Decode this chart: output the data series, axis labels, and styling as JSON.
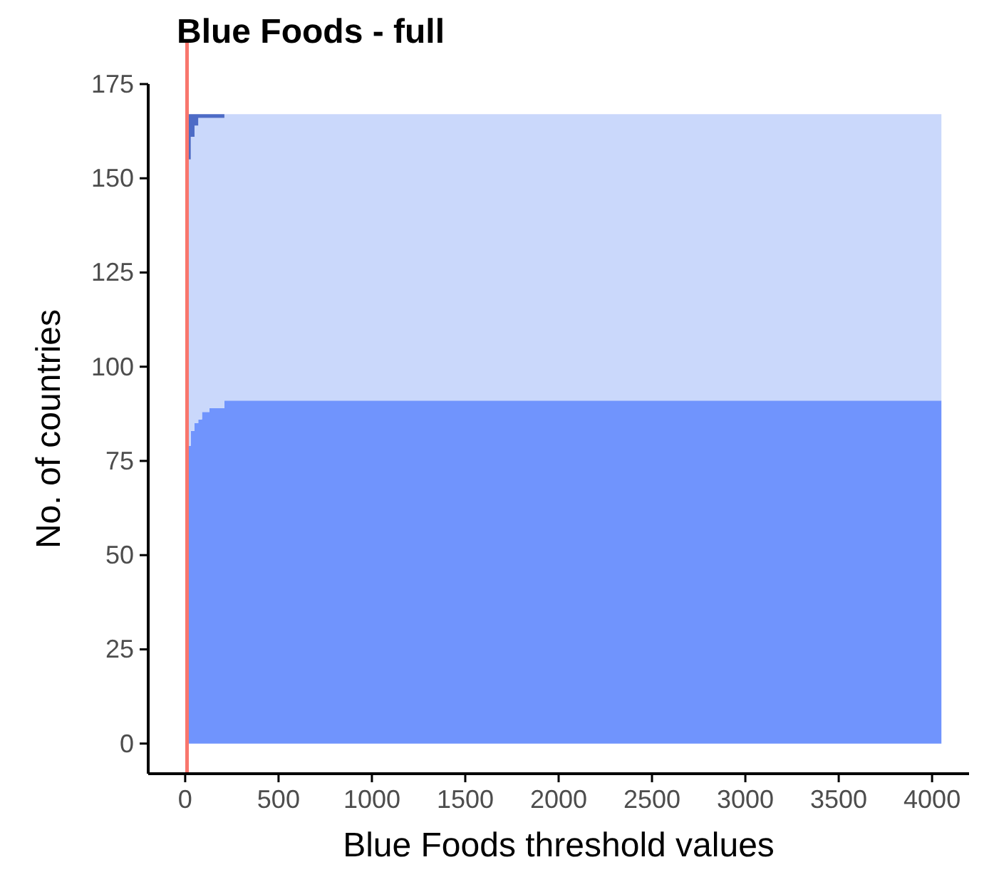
{
  "chart_data": {
    "type": "area",
    "stacked": true,
    "title": "Blue Foods - full",
    "xlabel": "Blue Foods threshold values",
    "ylabel": "No. of countries",
    "x": [
      10,
      30,
      50,
      70,
      90,
      130,
      210,
      4050
    ],
    "series": [
      {
        "color": "#7094fd",
        "values": [
          79,
          83,
          85,
          86,
          88,
          89,
          91,
          91
        ]
      },
      {
        "color": "#cad8fb",
        "values": [
          76,
          78,
          79,
          80,
          78,
          77,
          76,
          76
        ]
      },
      {
        "color": "#4d6bc6",
        "values": [
          12,
          6,
          3,
          1,
          1,
          1,
          0,
          0
        ]
      }
    ],
    "xlim": [
      -198,
      4198
    ],
    "xticks": [
      0,
      500,
      1000,
      1500,
      2000,
      2500,
      3000,
      3500,
      4000
    ],
    "ylim": [
      -8,
      175
    ],
    "yticks": [
      0,
      25,
      50,
      75,
      100,
      125,
      150,
      175
    ],
    "ref_lines": [
      {
        "axis": "x",
        "value": 10,
        "color": "#f8766d"
      }
    ]
  }
}
